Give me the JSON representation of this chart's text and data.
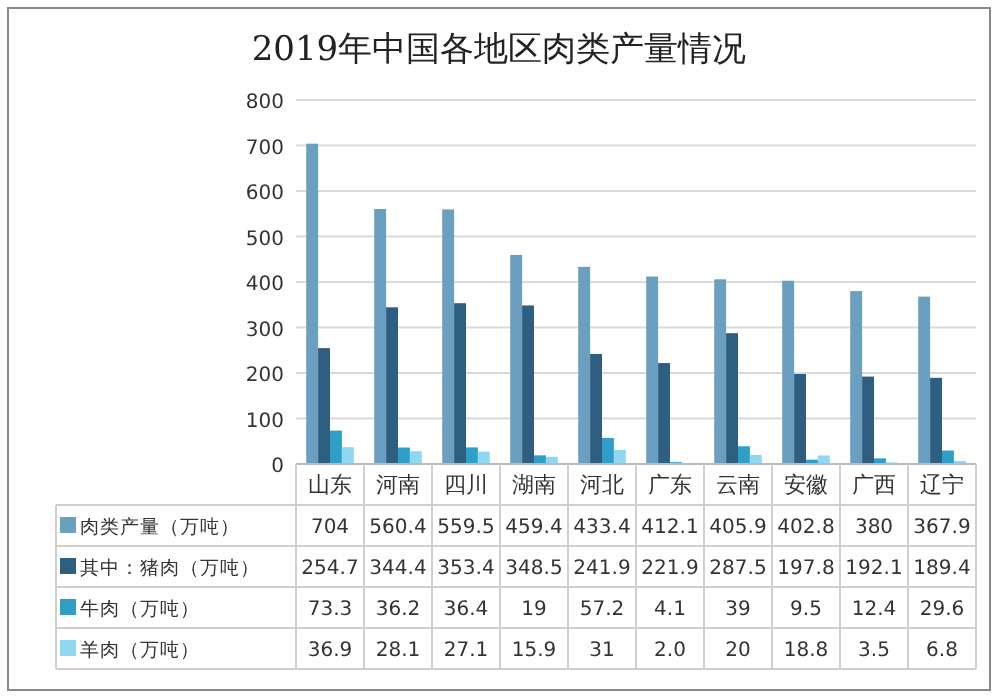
{
  "chart_data": {
    "type": "bar",
    "title": "2019年中国各地区肉类产量情况",
    "categories": [
      "山东",
      "河南",
      "四川",
      "湖南",
      "河北",
      "广东",
      "云南",
      "安徽",
      "广西",
      "辽宁"
    ],
    "series": [
      {
        "name": "肉类产量（万吨）",
        "color": "#6a9fc0",
        "values": [
          704,
          560.4,
          559.5,
          459.4,
          433.4,
          412.1,
          405.9,
          402.8,
          380,
          367.9
        ],
        "value_labels": [
          "704",
          "560.4",
          "559.5",
          "459.4",
          "433.4",
          "412.1",
          "405.9",
          "402.8",
          "380",
          "367.9"
        ]
      },
      {
        "name": "其中：猪肉（万吨）",
        "color": "#2f5f80",
        "values": [
          254.7,
          344.4,
          353.4,
          348.5,
          241.9,
          221.9,
          287.5,
          197.8,
          192.1,
          189.4
        ],
        "value_labels": [
          "254.7",
          "344.4",
          "353.4",
          "348.5",
          "241.9",
          "221.9",
          "287.5",
          "197.8",
          "192.1",
          "189.4"
        ]
      },
      {
        "name": "牛肉（万吨）",
        "color": "#2f9fc8",
        "values": [
          73.3,
          36.2,
          36.4,
          19,
          57.2,
          4.1,
          39,
          9.5,
          12.4,
          29.6
        ],
        "value_labels": [
          "73.3",
          "36.2",
          "36.4",
          "19",
          "57.2",
          "4.1",
          "39",
          "9.5",
          "12.4",
          "29.6"
        ]
      },
      {
        "name": "羊肉（万吨）",
        "color": "#8fd8ef",
        "values": [
          36.9,
          28.1,
          27.1,
          15.9,
          31,
          2.0,
          20,
          18.8,
          3.5,
          6.8
        ],
        "value_labels": [
          "36.9",
          "28.1",
          "27.1",
          "15.9",
          "31",
          "2.0",
          "20",
          "18.8",
          "3.5",
          "6.8"
        ]
      }
    ],
    "ylim": [
      0,
      800
    ],
    "yticks": [
      0,
      100,
      200,
      300,
      400,
      500,
      600,
      700,
      800
    ],
    "grid": "y",
    "legend": "bottom"
  }
}
